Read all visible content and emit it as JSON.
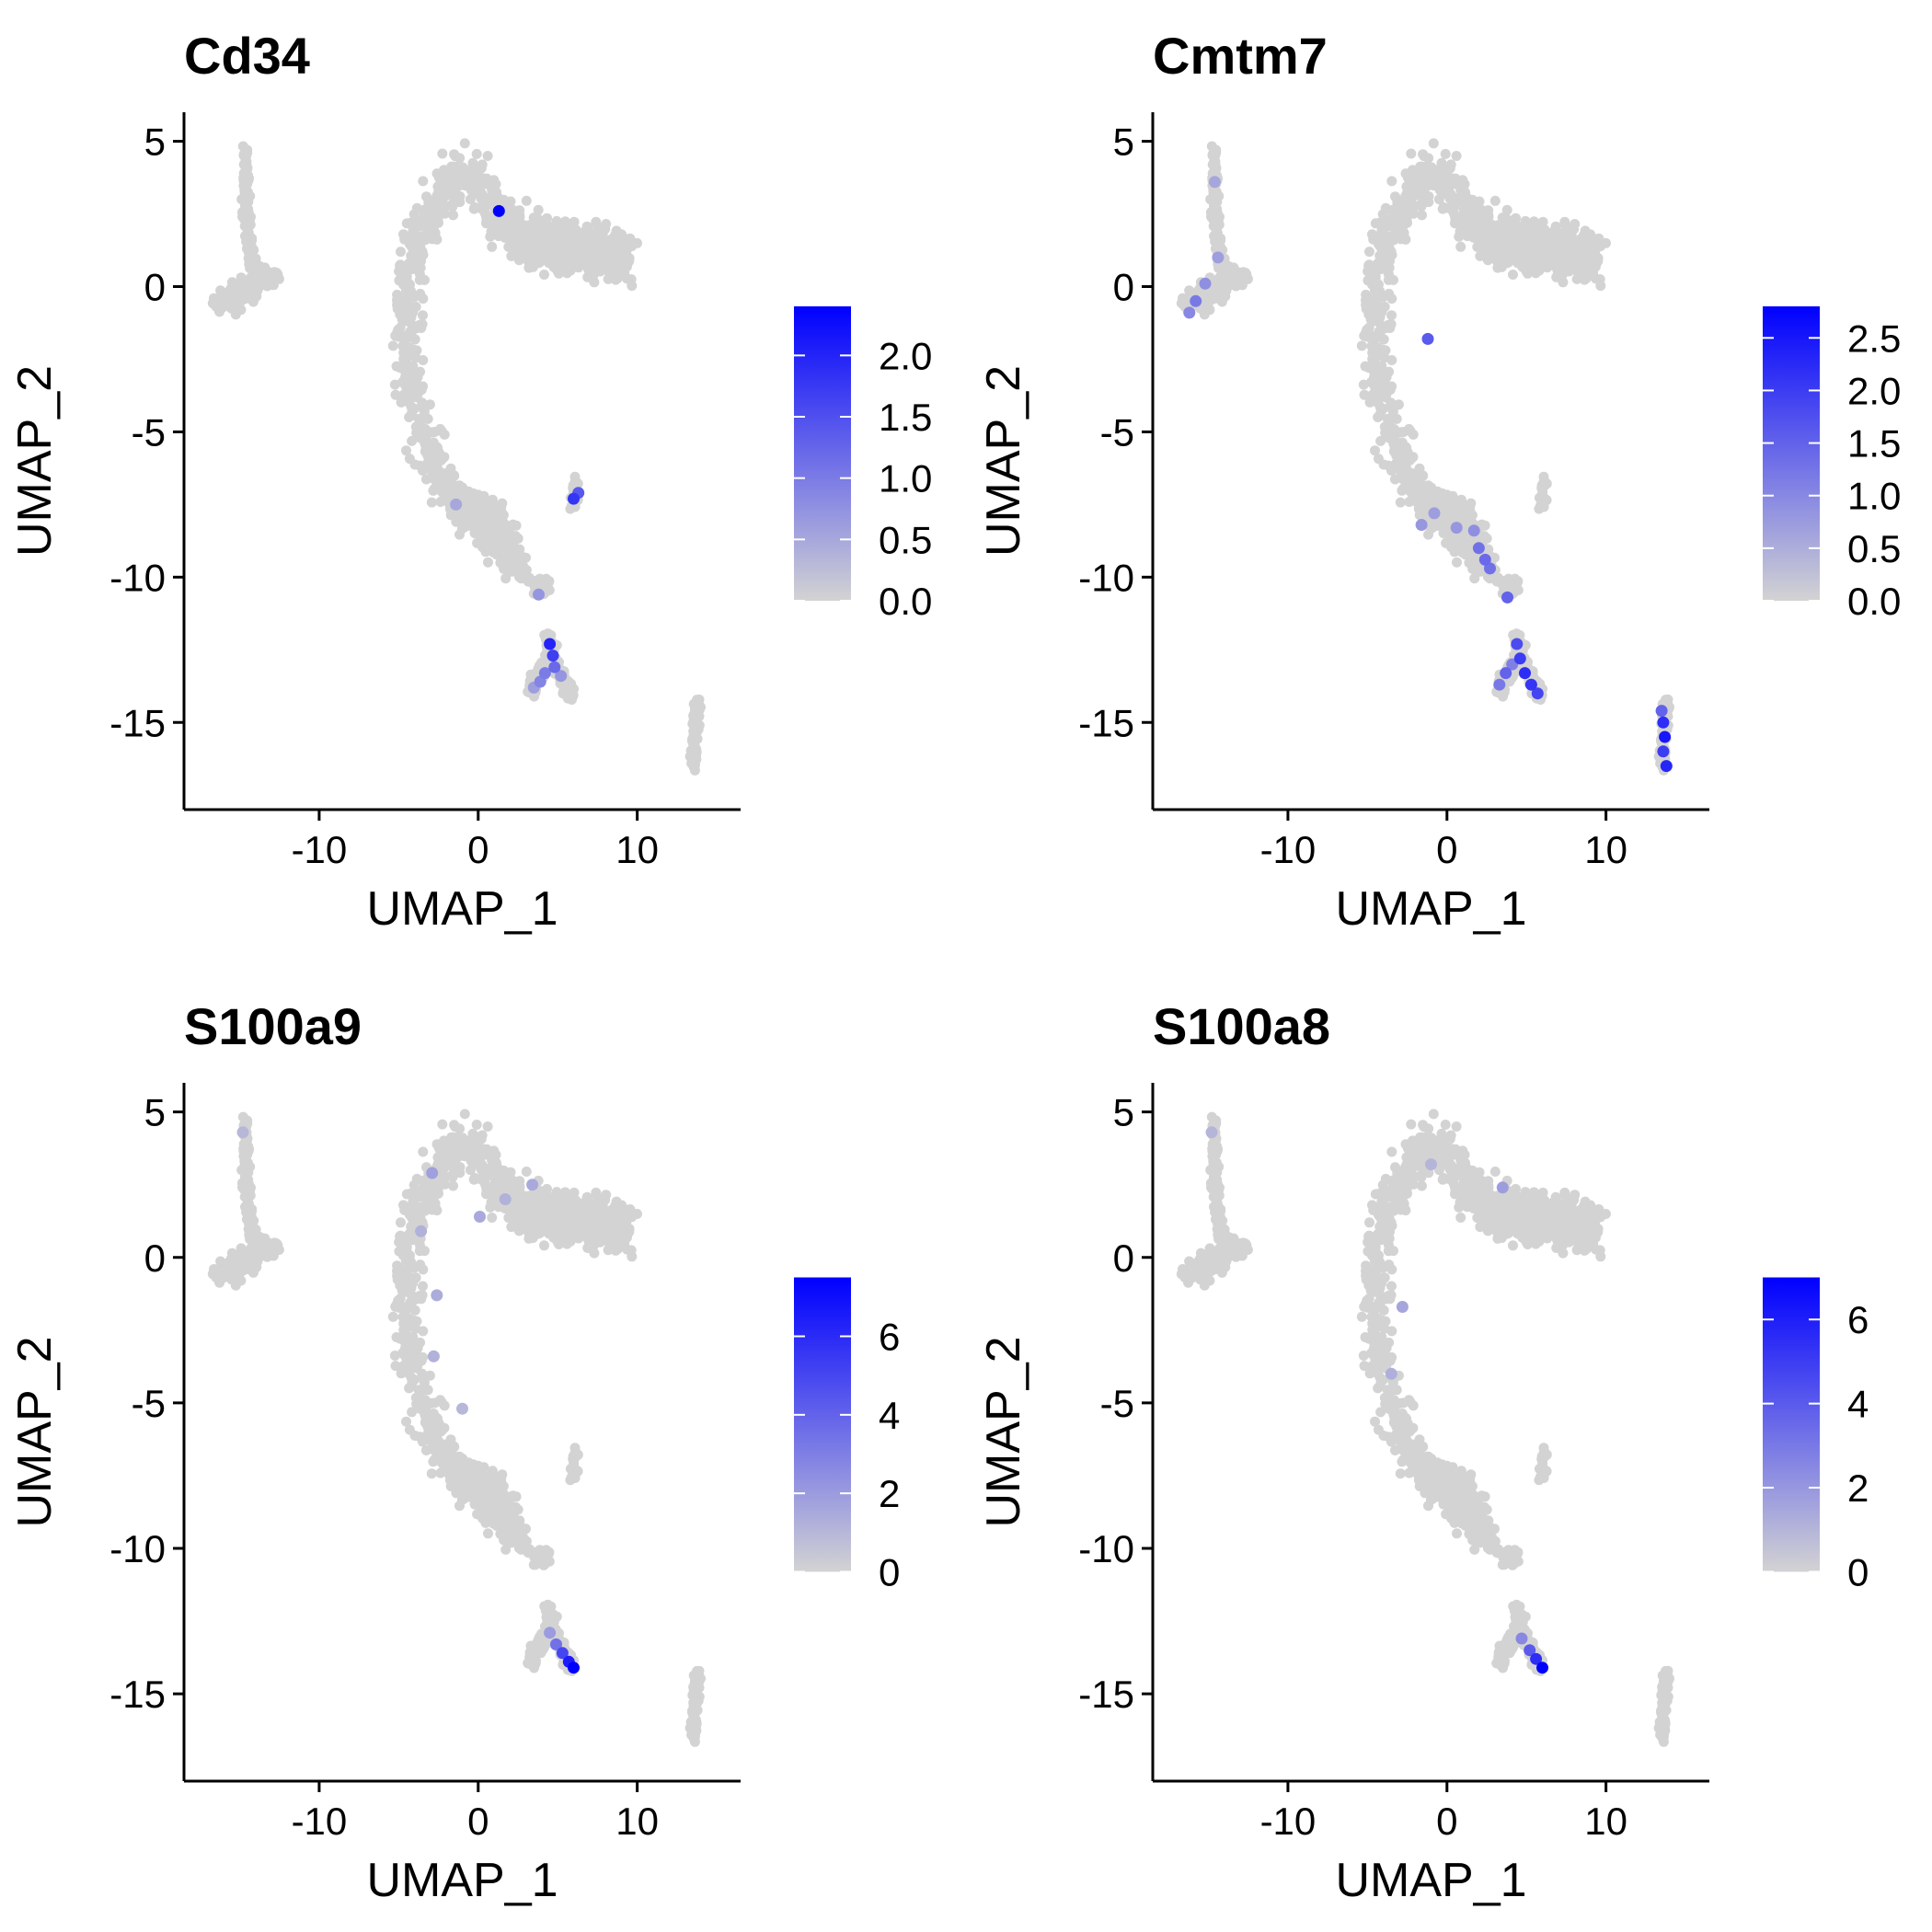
{
  "chart_data": [
    {
      "type": "scatter",
      "title": "Cd34",
      "xlabel": "UMAP_1",
      "ylabel": "UMAP_2",
      "xlim": [
        -18.5,
        16.5
      ],
      "ylim": [
        -18,
        6
      ],
      "xticks": [
        -10,
        0,
        10
      ],
      "yticks": [
        5,
        0,
        -5,
        -10,
        -15
      ],
      "xtick_labels": [
        "-10",
        "0",
        "10"
      ],
      "ytick_labels": [
        "5",
        "0",
        "-5",
        "-10",
        "-15"
      ],
      "color_low": "#d3d3d3",
      "color_high": "#0000ff",
      "legend": {
        "type": "colorbar",
        "placement": "right",
        "min": 0,
        "max": 2.4,
        "ticks": [
          2.0,
          1.5,
          1.0,
          0.5,
          0.0
        ],
        "tick_labels": [
          "2.0",
          "1.5",
          "1.0",
          "0.5",
          "0.0"
        ]
      },
      "highlights": [
        {
          "x": 1.3,
          "y": 2.6,
          "v": 2.4
        },
        {
          "x": 6.0,
          "y": -7.3,
          "v": 1.8
        },
        {
          "x": 6.3,
          "y": -7.1,
          "v": 1.4
        },
        {
          "x": 4.5,
          "y": -12.3,
          "v": 2.0
        },
        {
          "x": 4.7,
          "y": -12.7,
          "v": 1.7
        },
        {
          "x": 4.8,
          "y": -13.1,
          "v": 1.2
        },
        {
          "x": 4.2,
          "y": -13.3,
          "v": 1.0
        },
        {
          "x": 3.9,
          "y": -13.6,
          "v": 0.9
        },
        {
          "x": 5.2,
          "y": -13.4,
          "v": 0.7
        },
        {
          "x": 3.5,
          "y": -13.8,
          "v": 0.6
        },
        {
          "x": 3.8,
          "y": -10.6,
          "v": 0.7
        },
        {
          "x": -1.4,
          "y": -7.5,
          "v": 0.5
        }
      ]
    },
    {
      "type": "scatter",
      "title": "Cmtm7",
      "xlabel": "UMAP_1",
      "ylabel": "UMAP_2",
      "xlim": [
        -18.5,
        16.5
      ],
      "ylim": [
        -18,
        6
      ],
      "xticks": [
        -10,
        0,
        10
      ],
      "yticks": [
        5,
        0,
        -5,
        -10,
        -15
      ],
      "xtick_labels": [
        "-10",
        "0",
        "10"
      ],
      "ytick_labels": [
        "5",
        "0",
        "-5",
        "-10",
        "-15"
      ],
      "color_low": "#d3d3d3",
      "color_high": "#0000ff",
      "legend": {
        "type": "colorbar",
        "placement": "right",
        "min": 0,
        "max": 2.8,
        "ticks": [
          2.5,
          2.0,
          1.5,
          1.0,
          0.5,
          0.0
        ],
        "tick_labels": [
          "2.5",
          "2.0",
          "1.5",
          "1.0",
          "0.5",
          "0.0"
        ]
      },
      "highlights": [
        {
          "x": -15.8,
          "y": -0.5,
          "v": 1.2
        },
        {
          "x": -16.2,
          "y": -0.9,
          "v": 1.0
        },
        {
          "x": -15.2,
          "y": 0.1,
          "v": 0.9
        },
        {
          "x": -14.4,
          "y": 1.0,
          "v": 0.7
        },
        {
          "x": -14.6,
          "y": 3.6,
          "v": 0.6
        },
        {
          "x": -1.2,
          "y": -1.8,
          "v": 1.6
        },
        {
          "x": -1.6,
          "y": -8.2,
          "v": 0.8
        },
        {
          "x": -0.8,
          "y": -7.8,
          "v": 0.7
        },
        {
          "x": 0.6,
          "y": -8.3,
          "v": 0.8
        },
        {
          "x": 1.7,
          "y": -8.4,
          "v": 0.9
        },
        {
          "x": 2.0,
          "y": -9.0,
          "v": 1.3
        },
        {
          "x": 2.4,
          "y": -9.4,
          "v": 1.4
        },
        {
          "x": 2.7,
          "y": -9.7,
          "v": 1.3
        },
        {
          "x": 3.8,
          "y": -10.7,
          "v": 1.5
        },
        {
          "x": 4.4,
          "y": -12.3,
          "v": 1.8
        },
        {
          "x": 4.6,
          "y": -12.8,
          "v": 2.0
        },
        {
          "x": 4.9,
          "y": -13.3,
          "v": 2.2
        },
        {
          "x": 5.3,
          "y": -13.7,
          "v": 2.1
        },
        {
          "x": 5.7,
          "y": -14.0,
          "v": 1.9
        },
        {
          "x": 3.7,
          "y": -13.3,
          "v": 1.5
        },
        {
          "x": 3.3,
          "y": -13.7,
          "v": 1.2
        },
        {
          "x": 4.1,
          "y": -13.0,
          "v": 1.1
        },
        {
          "x": 13.6,
          "y": -15.0,
          "v": 2.2
        },
        {
          "x": 13.7,
          "y": -15.5,
          "v": 2.5
        },
        {
          "x": 13.6,
          "y": -16.0,
          "v": 2.0
        },
        {
          "x": 13.8,
          "y": -16.5,
          "v": 2.3
        },
        {
          "x": 13.5,
          "y": -14.6,
          "v": 1.5
        }
      ]
    },
    {
      "type": "scatter",
      "title": "S100a9",
      "xlabel": "UMAP_1",
      "ylabel": "UMAP_2",
      "xlim": [
        -18.5,
        16.5
      ],
      "ylim": [
        -18,
        6
      ],
      "xticks": [
        -10,
        0,
        10
      ],
      "yticks": [
        5,
        0,
        -5,
        -10,
        -15
      ],
      "xtick_labels": [
        "-10",
        "0",
        "10"
      ],
      "ytick_labels": [
        "5",
        "0",
        "-5",
        "-10",
        "-15"
      ],
      "color_low": "#d3d3d3",
      "color_high": "#0000ff",
      "legend": {
        "type": "colorbar",
        "placement": "right",
        "min": 0,
        "max": 7.5,
        "ticks": [
          6,
          4,
          2,
          0
        ],
        "tick_labels": [
          "6",
          "4",
          "2",
          "0"
        ]
      },
      "highlights": [
        {
          "x": 6.0,
          "y": -14.1,
          "v": 7.5
        },
        {
          "x": 5.7,
          "y": -13.9,
          "v": 6.5
        },
        {
          "x": 5.3,
          "y": -13.6,
          "v": 5.0
        },
        {
          "x": 4.9,
          "y": -13.3,
          "v": 3.5
        },
        {
          "x": 4.5,
          "y": -12.9,
          "v": 2.0
        },
        {
          "x": -2.9,
          "y": 2.9,
          "v": 1.8
        },
        {
          "x": 0.1,
          "y": 1.4,
          "v": 1.5
        },
        {
          "x": 3.4,
          "y": 2.5,
          "v": 1.5
        },
        {
          "x": 1.7,
          "y": 2.0,
          "v": 1.2
        },
        {
          "x": -3.6,
          "y": 0.9,
          "v": 1.2
        },
        {
          "x": -2.6,
          "y": -1.3,
          "v": 1.4
        },
        {
          "x": -2.8,
          "y": -3.4,
          "v": 1.2
        },
        {
          "x": -1.0,
          "y": -5.2,
          "v": 1.0
        },
        {
          "x": -14.8,
          "y": 4.3,
          "v": 1.0
        }
      ]
    },
    {
      "type": "scatter",
      "title": "S100a8",
      "xlabel": "UMAP_1",
      "ylabel": "UMAP_2",
      "xlim": [
        -18.5,
        16.5
      ],
      "ylim": [
        -18,
        6
      ],
      "xticks": [
        -10,
        0,
        10
      ],
      "yticks": [
        5,
        0,
        -5,
        -10,
        -15
      ],
      "xtick_labels": [
        "-10",
        "0",
        "10"
      ],
      "ytick_labels": [
        "5",
        "0",
        "-5",
        "-10",
        "-15"
      ],
      "color_low": "#d3d3d3",
      "color_high": "#0000ff",
      "legend": {
        "type": "colorbar",
        "placement": "right",
        "min": 0,
        "max": 7,
        "ticks": [
          6,
          4,
          2,
          0
        ],
        "tick_labels": [
          "6",
          "4",
          "2",
          "0"
        ]
      },
      "highlights": [
        {
          "x": 6.0,
          "y": -14.1,
          "v": 7.0
        },
        {
          "x": 5.6,
          "y": -13.8,
          "v": 5.5
        },
        {
          "x": 5.2,
          "y": -13.5,
          "v": 4.0
        },
        {
          "x": 4.7,
          "y": -13.1,
          "v": 2.5
        },
        {
          "x": 3.5,
          "y": 2.4,
          "v": 1.8
        },
        {
          "x": -2.8,
          "y": -1.7,
          "v": 1.5
        },
        {
          "x": -3.5,
          "y": -4.0,
          "v": 1.2
        },
        {
          "x": -14.8,
          "y": 4.3,
          "v": 1.0
        },
        {
          "x": -1.0,
          "y": 3.2,
          "v": 1.0
        }
      ]
    }
  ]
}
